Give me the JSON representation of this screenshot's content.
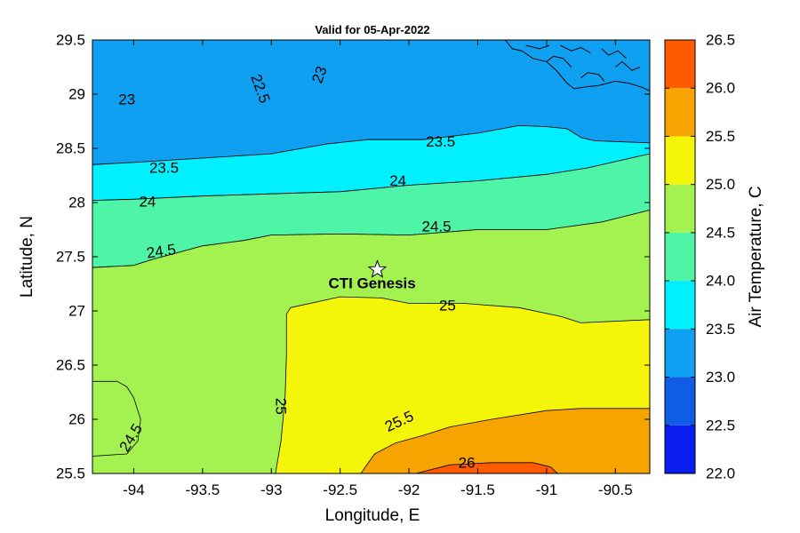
{
  "chart_data": {
    "type": "contour",
    "title": "Valid for 05-Apr-2022",
    "xlabel": "Longitude, E",
    "ylabel": "Latitude, N",
    "xlim": [
      -94.3,
      -90.25
    ],
    "ylim": [
      25.5,
      29.5
    ],
    "xticks": [
      {
        "value": -94,
        "label": "-94"
      },
      {
        "value": -93.5,
        "label": "-93.5"
      },
      {
        "value": -93,
        "label": "-93"
      },
      {
        "value": -92.5,
        "label": "-92.5"
      },
      {
        "value": -92,
        "label": "-92"
      },
      {
        "value": -91.5,
        "label": "-91.5"
      },
      {
        "value": -91,
        "label": "-91"
      },
      {
        "value": -90.5,
        "label": "-90.5"
      }
    ],
    "yticks": [
      {
        "value": 25.5,
        "label": "25.5"
      },
      {
        "value": 26,
        "label": "26"
      },
      {
        "value": 26.5,
        "label": "26.5"
      },
      {
        "value": 27,
        "label": "27"
      },
      {
        "value": 27.5,
        "label": "27.5"
      },
      {
        "value": 28,
        "label": "28"
      },
      {
        "value": 28.5,
        "label": "28.5"
      },
      {
        "value": 29,
        "label": "29"
      },
      {
        "value": 29.5,
        "label": "29.5"
      }
    ],
    "colorbar": {
      "label": "Air Temperature, C",
      "range": [
        22.0,
        26.5
      ],
      "levels": [
        {
          "value": 22.0,
          "label": "22.0"
        },
        {
          "value": 22.5,
          "label": "22.5"
        },
        {
          "value": 23.0,
          "label": "23.0"
        },
        {
          "value": 23.5,
          "label": "23.5"
        },
        {
          "value": 24.0,
          "label": "24.0"
        },
        {
          "value": 24.5,
          "label": "24.5"
        },
        {
          "value": 25.0,
          "label": "25.0"
        },
        {
          "value": 25.5,
          "label": "25.5"
        },
        {
          "value": 26.0,
          "label": "26.0"
        },
        {
          "value": 26.5,
          "label": "26.5"
        }
      ],
      "colors": [
        "#0b1ef0",
        "#0f5ce6",
        "#0fa0f2",
        "#00f0ff",
        "#4ff5a6",
        "#a4f24f",
        "#f5f50a",
        "#f7a400",
        "#ff5a00"
      ]
    },
    "bands": [
      {
        "min": 22.5,
        "color": "#0f5ce6",
        "poly": [
          [
            -93.66,
            29.5
          ],
          [
            -93.4,
            29.5
          ],
          [
            -93.25,
            29.43
          ],
          [
            -93.12,
            29.15
          ],
          [
            -93.02,
            29.0
          ],
          [
            -92.6,
            28.9
          ],
          [
            -92.48,
            29.0
          ],
          [
            -92.6,
            29.3
          ],
          [
            -92.75,
            29.42
          ],
          [
            -92.82,
            29.5
          ]
        ]
      },
      {
        "min": 23.0,
        "color": "#0fa0f2",
        "poly": [
          [
            -94.3,
            29.5
          ],
          [
            -90.25,
            29.5
          ],
          [
            -90.25,
            28.55
          ],
          [
            -90.65,
            28.57
          ],
          [
            -90.75,
            28.6
          ],
          [
            -90.85,
            28.68
          ],
          [
            -91.0,
            28.7
          ],
          [
            -91.2,
            28.71
          ],
          [
            -91.5,
            28.64
          ],
          [
            -91.9,
            28.58
          ],
          [
            -92.3,
            28.58
          ],
          [
            -92.6,
            28.54
          ],
          [
            -93.0,
            28.45
          ],
          [
            -93.5,
            28.41
          ],
          [
            -94.0,
            28.37
          ],
          [
            -94.3,
            28.35
          ]
        ]
      },
      {
        "min": 23.5,
        "color": "#00f0ff",
        "poly": [
          [
            -94.3,
            28.35
          ],
          [
            -94.0,
            28.37
          ],
          [
            -93.5,
            28.41
          ],
          [
            -93.0,
            28.45
          ],
          [
            -92.6,
            28.54
          ],
          [
            -92.3,
            28.58
          ],
          [
            -91.9,
            28.58
          ],
          [
            -91.5,
            28.64
          ],
          [
            -91.2,
            28.71
          ],
          [
            -91.0,
            28.7
          ],
          [
            -90.85,
            28.68
          ],
          [
            -90.75,
            28.6
          ],
          [
            -90.65,
            28.57
          ],
          [
            -90.25,
            28.55
          ],
          [
            -90.25,
            28.45
          ],
          [
            -90.7,
            28.32
          ],
          [
            -91.0,
            28.26
          ],
          [
            -91.5,
            28.2
          ],
          [
            -92.0,
            28.16
          ],
          [
            -92.5,
            28.1
          ],
          [
            -93.0,
            28.08
          ],
          [
            -93.5,
            28.06
          ],
          [
            -94.0,
            28.03
          ],
          [
            -94.3,
            28.02
          ]
        ]
      },
      {
        "min": 24.0,
        "color": "#4ff5a6",
        "poly": [
          [
            -94.3,
            28.02
          ],
          [
            -94.0,
            28.03
          ],
          [
            -93.5,
            28.06
          ],
          [
            -93.0,
            28.08
          ],
          [
            -92.5,
            28.1
          ],
          [
            -92.0,
            28.16
          ],
          [
            -91.5,
            28.2
          ],
          [
            -91.0,
            28.26
          ],
          [
            -90.7,
            28.32
          ],
          [
            -90.25,
            28.45
          ],
          [
            -90.25,
            27.93
          ],
          [
            -90.6,
            27.82
          ],
          [
            -91.0,
            27.75
          ],
          [
            -91.5,
            27.75
          ],
          [
            -92.0,
            27.7
          ],
          [
            -92.5,
            27.71
          ],
          [
            -93.0,
            27.7
          ],
          [
            -93.2,
            27.65
          ],
          [
            -93.5,
            27.6
          ],
          [
            -93.7,
            27.53
          ],
          [
            -93.85,
            27.48
          ],
          [
            -94.0,
            27.42
          ],
          [
            -94.3,
            27.4
          ]
        ]
      },
      {
        "min": 24.5,
        "color": "#a4f24f",
        "poly": [
          [
            -94.3,
            27.4
          ],
          [
            -94.0,
            27.42
          ],
          [
            -93.85,
            27.48
          ],
          [
            -93.7,
            27.53
          ],
          [
            -93.5,
            27.6
          ],
          [
            -93.2,
            27.65
          ],
          [
            -93.0,
            27.7
          ],
          [
            -92.5,
            27.71
          ],
          [
            -92.0,
            27.7
          ],
          [
            -91.5,
            27.75
          ],
          [
            -91.0,
            27.75
          ],
          [
            -90.6,
            27.82
          ],
          [
            -90.25,
            27.93
          ],
          [
            -90.25,
            25.5
          ],
          [
            -94.3,
            25.5
          ]
        ]
      },
      {
        "min": 25.0,
        "color": "#f5f50a",
        "poly": [
          [
            -92.97,
            25.5
          ],
          [
            -92.93,
            25.8
          ],
          [
            -92.9,
            26.2
          ],
          [
            -92.89,
            26.6
          ],
          [
            -92.89,
            26.97
          ],
          [
            -92.86,
            27.03
          ],
          [
            -92.5,
            27.13
          ],
          [
            -92.2,
            27.12
          ],
          [
            -92.0,
            27.07
          ],
          [
            -91.6,
            27.07
          ],
          [
            -91.2,
            27.03
          ],
          [
            -90.9,
            26.95
          ],
          [
            -90.75,
            26.89
          ],
          [
            -90.25,
            26.92
          ],
          [
            -90.25,
            25.5
          ]
        ]
      },
      {
        "min": 24.5,
        "color": "#a4f24f",
        "poly": [
          [
            -94.3,
            26.35
          ],
          [
            -94.12,
            26.35
          ],
          [
            -94.05,
            26.3
          ],
          [
            -94.0,
            26.2
          ],
          [
            -93.95,
            26.0
          ],
          [
            -93.97,
            25.8
          ],
          [
            -94.05,
            25.68
          ],
          [
            -94.3,
            25.66
          ]
        ]
      },
      {
        "min": 25.5,
        "color": "#f7a400",
        "poly": [
          [
            -92.35,
            25.5
          ],
          [
            -92.25,
            25.68
          ],
          [
            -92.1,
            25.78
          ],
          [
            -91.9,
            25.85
          ],
          [
            -91.7,
            25.93
          ],
          [
            -91.4,
            26.0
          ],
          [
            -91.0,
            26.08
          ],
          [
            -90.75,
            26.1
          ],
          [
            -90.25,
            26.1
          ],
          [
            -90.25,
            25.5
          ]
        ]
      },
      {
        "min": 26.0,
        "color": "#ff5a00",
        "poly": [
          [
            -91.95,
            25.5
          ],
          [
            -91.7,
            25.58
          ],
          [
            -91.4,
            25.6
          ],
          [
            -91.1,
            25.6
          ],
          [
            -90.97,
            25.56
          ],
          [
            -90.92,
            25.5
          ]
        ]
      }
    ],
    "contour_labels": [
      {
        "text": "23",
        "lon": -94.05,
        "lat": 28.95,
        "angle": 0
      },
      {
        "text": "22.5",
        "lon": -93.08,
        "lat": 29.05,
        "angle": 70
      },
      {
        "text": "23",
        "lon": -92.65,
        "lat": 29.18,
        "angle": -70
      },
      {
        "text": "23.5",
        "lon": -93.78,
        "lat": 28.32,
        "angle": 0
      },
      {
        "text": "23.5",
        "lon": -91.77,
        "lat": 28.56,
        "angle": 0
      },
      {
        "text": "24",
        "lon": -93.9,
        "lat": 28.01,
        "angle": 0
      },
      {
        "text": "24",
        "lon": -92.08,
        "lat": 28.2,
        "angle": 0
      },
      {
        "text": "24.5",
        "lon": -93.8,
        "lat": 27.55,
        "angle": -8
      },
      {
        "text": "24.5",
        "lon": -91.8,
        "lat": 27.78,
        "angle": 0
      },
      {
        "text": "25",
        "lon": -91.72,
        "lat": 27.05,
        "angle": 0
      },
      {
        "text": "25",
        "lon": -92.93,
        "lat": 26.12,
        "angle": 90
      },
      {
        "text": "25.5",
        "lon": -92.07,
        "lat": 25.98,
        "angle": -25
      },
      {
        "text": "26",
        "lon": -91.58,
        "lat": 25.6,
        "angle": 0
      },
      {
        "text": "24.5",
        "lon": -94.02,
        "lat": 25.83,
        "angle": -58
      }
    ],
    "station": {
      "name": "CTI Genesis",
      "lon": -92.23,
      "lat": 27.38
    },
    "coastline": [
      [
        [
          -91.3,
          29.5
        ],
        [
          -91.25,
          29.42
        ],
        [
          -91.18,
          29.4
        ],
        [
          -91.1,
          29.33
        ],
        [
          -91.0,
          29.3
        ],
        [
          -90.93,
          29.22
        ],
        [
          -90.85,
          29.1
        ],
        [
          -90.8,
          29.05
        ],
        [
          -90.7,
          29.07
        ],
        [
          -90.62,
          29.08
        ],
        [
          -90.5,
          29.12
        ],
        [
          -90.4,
          29.1
        ],
        [
          -90.3,
          29.06
        ],
        [
          -90.25,
          29.03
        ]
      ],
      [
        [
          -91.0,
          29.3
        ],
        [
          -90.95,
          29.35
        ],
        [
          -90.88,
          29.33
        ],
        [
          -90.82,
          29.25
        ]
      ],
      [
        [
          -90.75,
          29.15
        ],
        [
          -90.7,
          29.2
        ],
        [
          -90.62,
          29.18
        ],
        [
          -90.58,
          29.12
        ]
      ],
      [
        [
          -90.5,
          29.25
        ],
        [
          -90.45,
          29.3
        ],
        [
          -90.38,
          29.22
        ],
        [
          -90.32,
          29.25
        ]
      ],
      [
        [
          -91.15,
          29.45
        ],
        [
          -91.05,
          29.42
        ],
        [
          -90.98,
          29.45
        ]
      ],
      [
        [
          -90.9,
          29.45
        ],
        [
          -90.82,
          29.4
        ],
        [
          -90.75,
          29.43
        ],
        [
          -90.68,
          29.38
        ]
      ],
      [
        [
          -90.6,
          29.42
        ],
        [
          -90.55,
          29.36
        ],
        [
          -90.48,
          29.4
        ],
        [
          -90.42,
          29.33
        ]
      ]
    ]
  }
}
